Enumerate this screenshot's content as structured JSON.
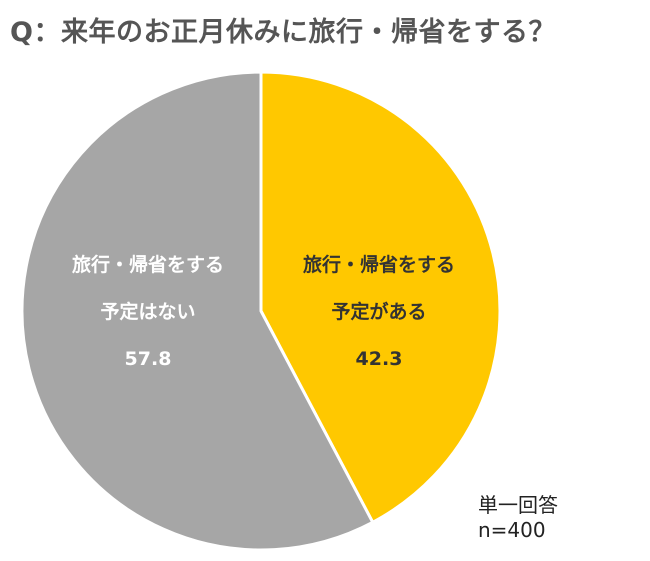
{
  "title": "Q：来年のお正月休みに旅行・帰省をする？",
  "chart_data": {
    "type": "pie",
    "slices": [
      {
        "lines": [
          "旅行・帰省をする",
          "予定がある"
        ],
        "value": 42.3,
        "value_label": "42.3",
        "color": "#FFC800",
        "text_color": "#333333"
      },
      {
        "lines": [
          "旅行・帰省をする",
          "予定はない"
        ],
        "value": 57.8,
        "value_label": "57.8",
        "color": "#A6A6A6",
        "text_color": "#FFFFFF"
      }
    ],
    "start_angle_deg": 0,
    "direction": "clockwise"
  },
  "notes": {
    "answer_type": "単一回答",
    "sample_size": "n=400"
  }
}
